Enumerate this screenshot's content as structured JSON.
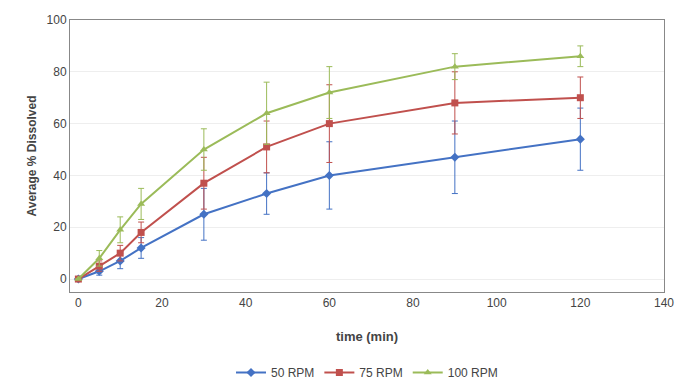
{
  "chart_data": {
    "type": "line",
    "x": [
      0,
      5,
      10,
      15,
      30,
      45,
      60,
      90,
      120
    ],
    "series": [
      {
        "name": "50 RPM",
        "color": "#4472C4",
        "marker": "diamond",
        "values": [
          0,
          3,
          7,
          12,
          25,
          33,
          40,
          47,
          54
        ],
        "errors": [
          0,
          1.5,
          3,
          4,
          10,
          8,
          13,
          14,
          12
        ]
      },
      {
        "name": "75 RPM",
        "color": "#C0504D",
        "marker": "square",
        "values": [
          0,
          5,
          10,
          18,
          37,
          51,
          60,
          68,
          70
        ],
        "errors": [
          0,
          2,
          3,
          4,
          10,
          10,
          15,
          12,
          8
        ]
      },
      {
        "name": "100 RPM",
        "color": "#9BBB59",
        "marker": "triangle",
        "values": [
          0,
          8,
          19,
          29,
          50,
          64,
          72,
          82,
          86
        ],
        "errors": [
          0,
          3,
          5,
          6,
          8,
          12,
          10,
          5,
          4
        ]
      }
    ],
    "xlabel": "time (min)",
    "ylabel": "Average % Dissolved",
    "xlim": [
      -2,
      140
    ],
    "ylim": [
      -5,
      100
    ],
    "xticks": [
      0,
      20,
      40,
      60,
      80,
      100,
      120,
      140
    ],
    "yticks": [
      0,
      20,
      40,
      60,
      80,
      100
    ],
    "grid": "y",
    "legend": "bottom"
  }
}
